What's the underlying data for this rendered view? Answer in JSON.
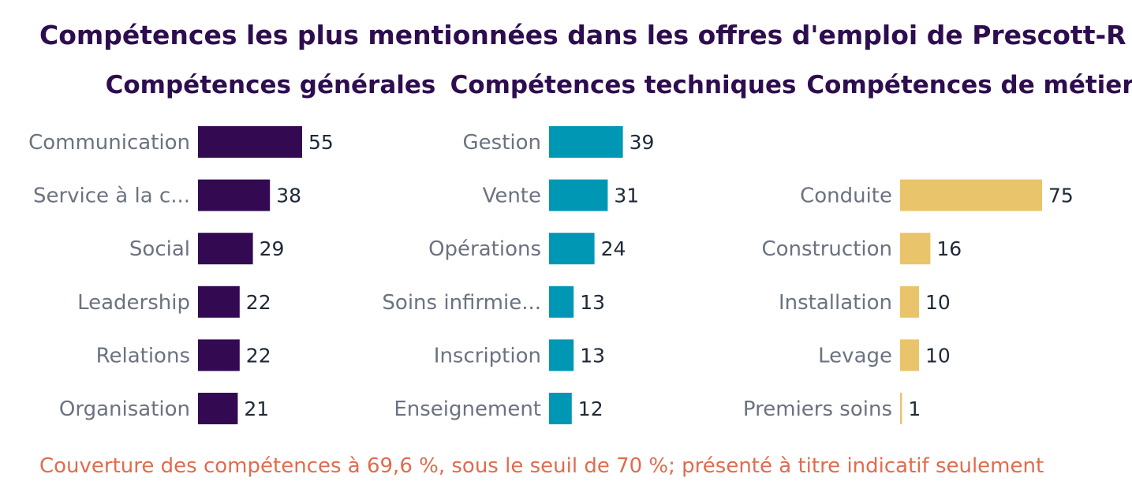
{
  "colors": {
    "title": "#2e0d4f",
    "category_label": "#6b7280",
    "value_label": "#1f2937",
    "footnote": "#e06c4d"
  },
  "title": "Compétences les plus mentionnées dans les offres d'emploi de Prescott-R",
  "footnote": "Couverture des compétences à 69,6 %, sous le seuil de 70 %; présenté à titre indicatif seulement",
  "chart_data": [
    {
      "type": "bar",
      "orientation": "horizontal",
      "title": "Compétences générales",
      "color": "#330a52",
      "categories": [
        "Communication",
        "Service à la c...",
        "Social",
        "Leadership",
        "Relations",
        "Organisation"
      ],
      "values": [
        55,
        38,
        29,
        22,
        22,
        21
      ]
    },
    {
      "type": "bar",
      "orientation": "horizontal",
      "title": "Compétences techniques",
      "color": "#0097b4",
      "categories": [
        "Gestion",
        "Vente",
        "Opérations",
        "Soins infirmie...",
        "Inscription",
        "Enseignement"
      ],
      "values": [
        39,
        31,
        24,
        13,
        13,
        12
      ]
    },
    {
      "type": "bar",
      "orientation": "horizontal",
      "title": "Compétences de métier",
      "color": "#e9c46a",
      "categories": [
        "Conduite",
        "Construction",
        "Installation",
        "Levage",
        "Premiers soins"
      ],
      "values": [
        75,
        16,
        10,
        10,
        1
      ]
    }
  ]
}
